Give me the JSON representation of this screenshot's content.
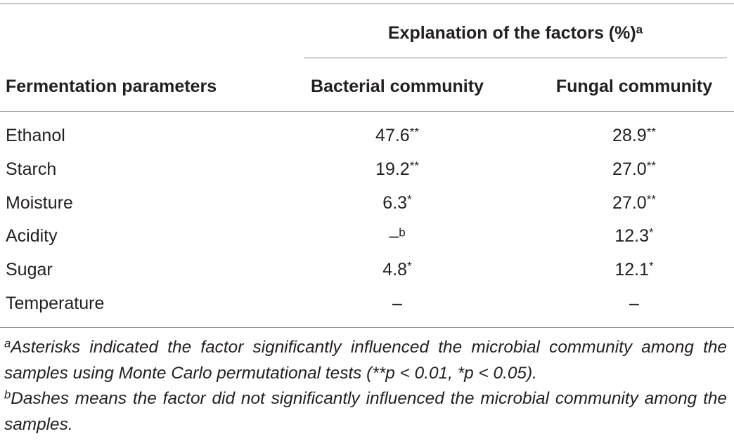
{
  "table": {
    "group_header": {
      "text": "Explanation of the factors (%)",
      "sup": "a"
    },
    "columns": [
      "Fermentation parameters",
      "Bacterial community",
      "Fungal community"
    ],
    "rows": [
      [
        {
          "text": "Ethanol"
        },
        {
          "text": "47.6",
          "sup": "**"
        },
        {
          "text": "28.9",
          "sup": "**"
        }
      ],
      [
        {
          "text": "Starch"
        },
        {
          "text": "19.2",
          "sup": "**"
        },
        {
          "text": "27.0",
          "sup": "**"
        }
      ],
      [
        {
          "text": "Moisture"
        },
        {
          "text": "6.3",
          "sup": "*"
        },
        {
          "text": "27.0",
          "sup": "**"
        }
      ],
      [
        {
          "text": "Acidity"
        },
        {
          "text": "–",
          "sup": "b"
        },
        {
          "text": "12.3",
          "sup": "*"
        }
      ],
      [
        {
          "text": "Sugar"
        },
        {
          "text": "4.8",
          "sup": "*"
        },
        {
          "text": "12.1",
          "sup": "*"
        }
      ],
      [
        {
          "text": "Temperature"
        },
        {
          "text": "–"
        },
        {
          "text": "–"
        }
      ]
    ],
    "footnotes": [
      {
        "mark": "a",
        "text": "Asterisks indicated the factor significantly influenced the microbial community among the samples using Monte Carlo permutational tests (**p < 0.01, *p < 0.05)."
      },
      {
        "mark": "b",
        "text": "Dashes means the factor did not significantly influenced the microbial community among the samples."
      }
    ]
  }
}
